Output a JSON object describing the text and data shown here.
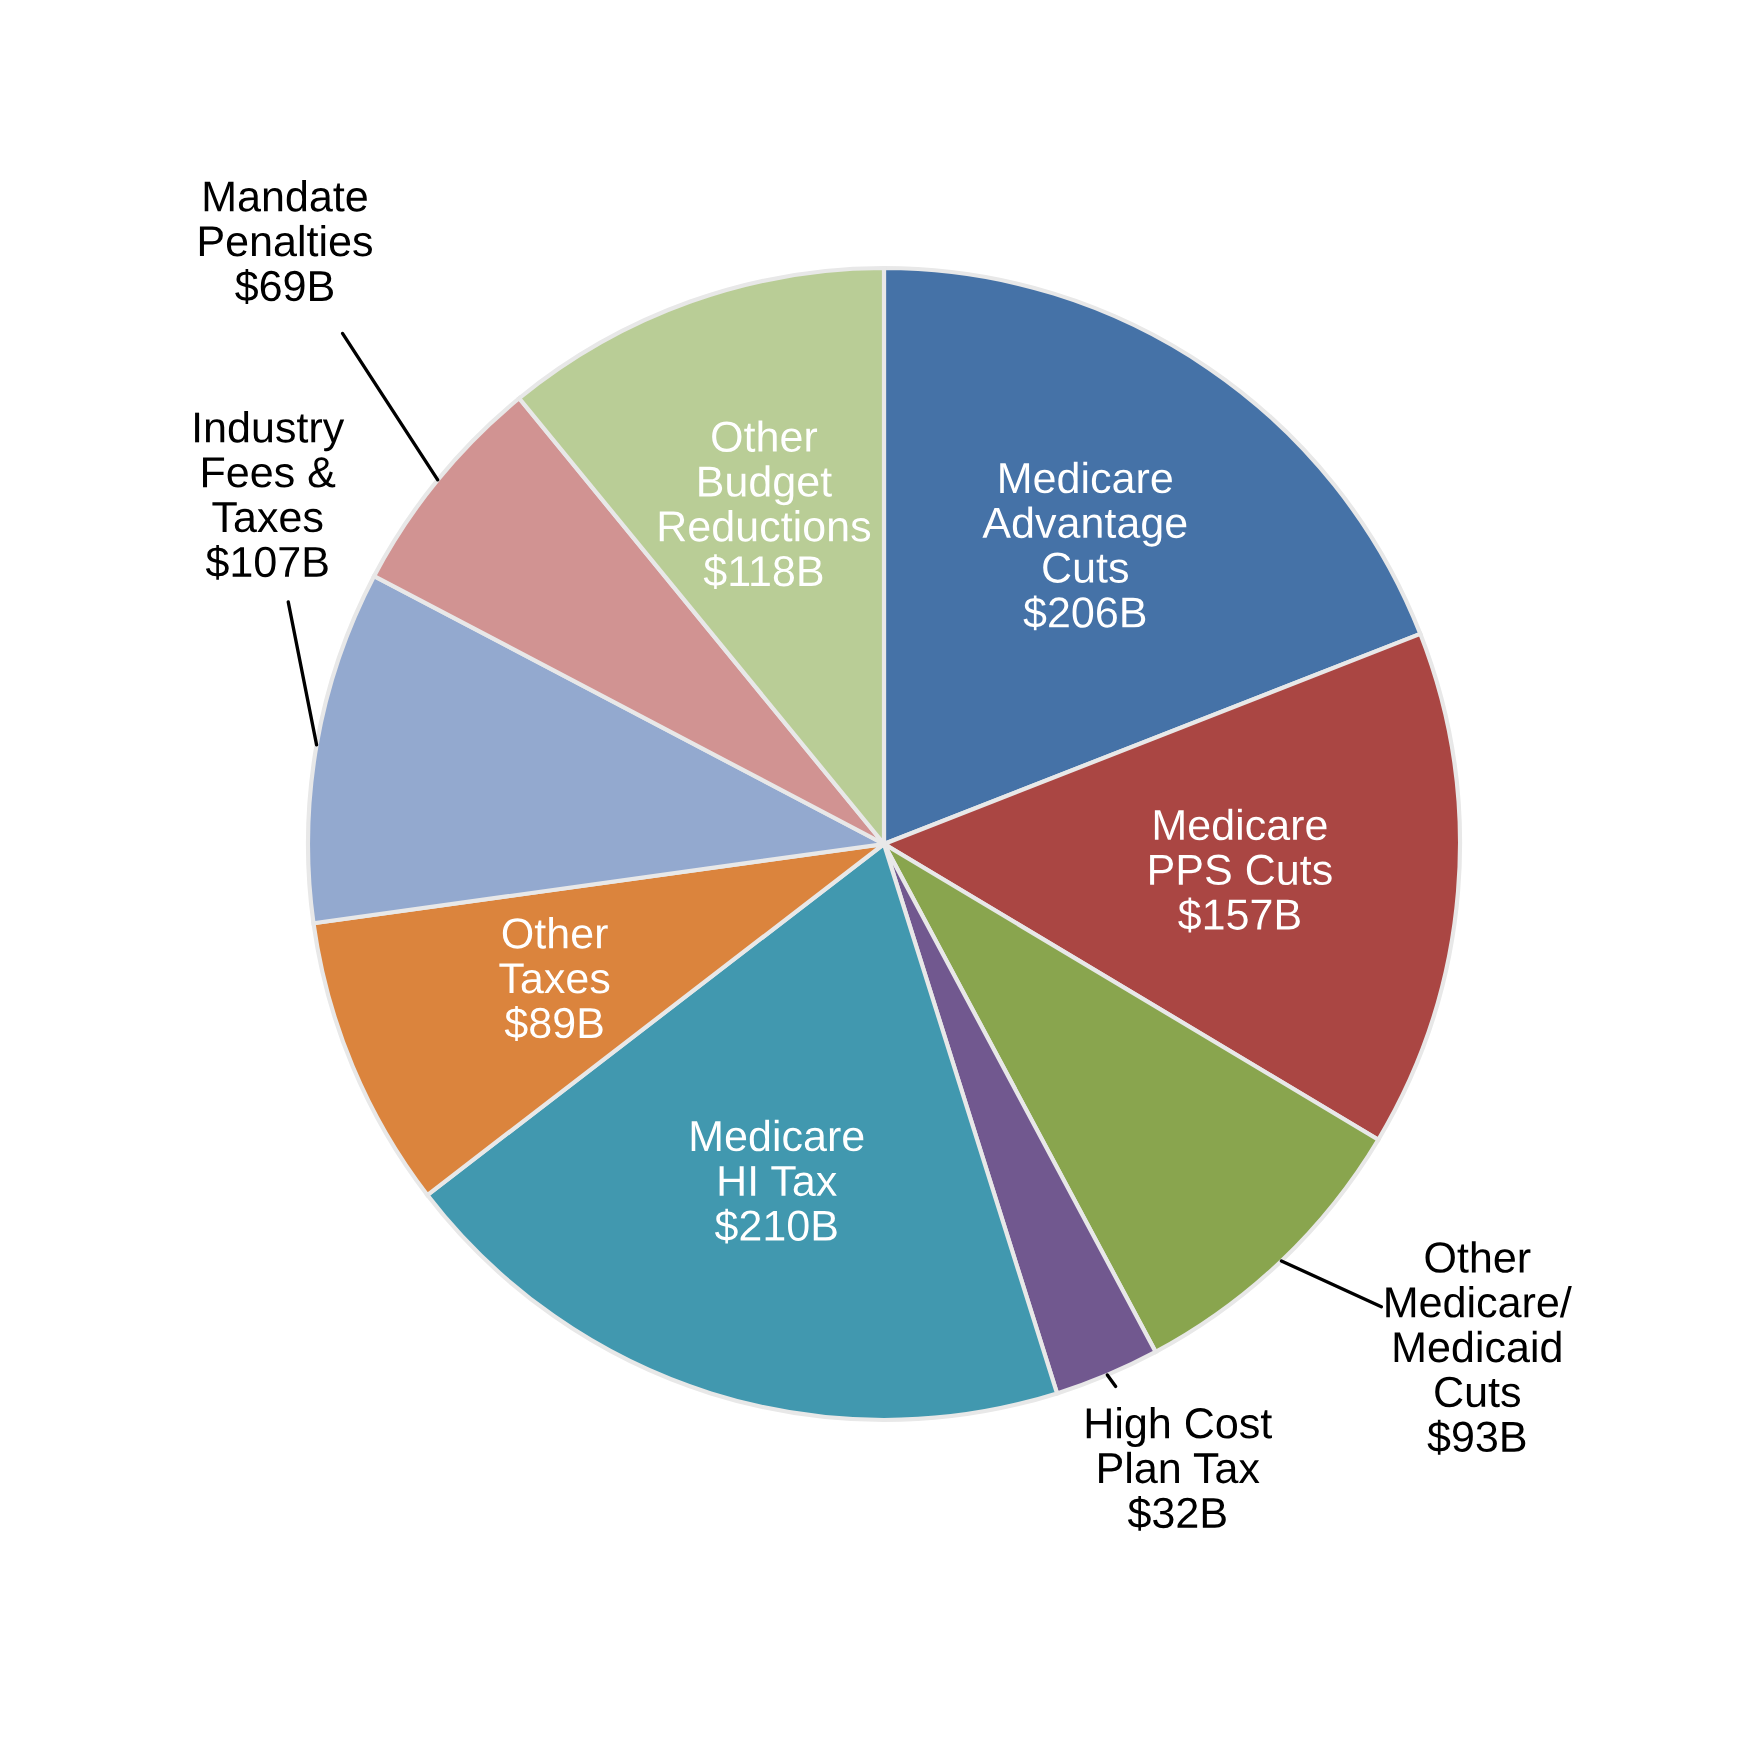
{
  "chart_data": {
    "type": "pie",
    "categories": [
      "Medicare\nAdvantage\nCuts",
      "Medicare\nPPS Cuts",
      "Other\nMedicare/\nMedicaid\nCuts",
      "High Cost\nPlan Tax",
      "Medicare\nHI Tax",
      "Other\nTaxes",
      "Industry\nFees &\nTaxes",
      "Mandate\nPenalties",
      "Other\nBudget\nReductions"
    ],
    "values": [
      206,
      157,
      93,
      32,
      210,
      89,
      107,
      69,
      118
    ],
    "value_labels": [
      "$206B",
      "$157B",
      "$93B",
      "$32B",
      "$210B",
      "$89B",
      "$107B",
      "$69B",
      "$118B"
    ],
    "colors": [
      "#4572a7",
      "#aa4643",
      "#89a54e",
      "#71588f",
      "#4198af",
      "#db843d",
      "#93a9cf",
      "#d19392",
      "#b9cd96"
    ]
  }
}
